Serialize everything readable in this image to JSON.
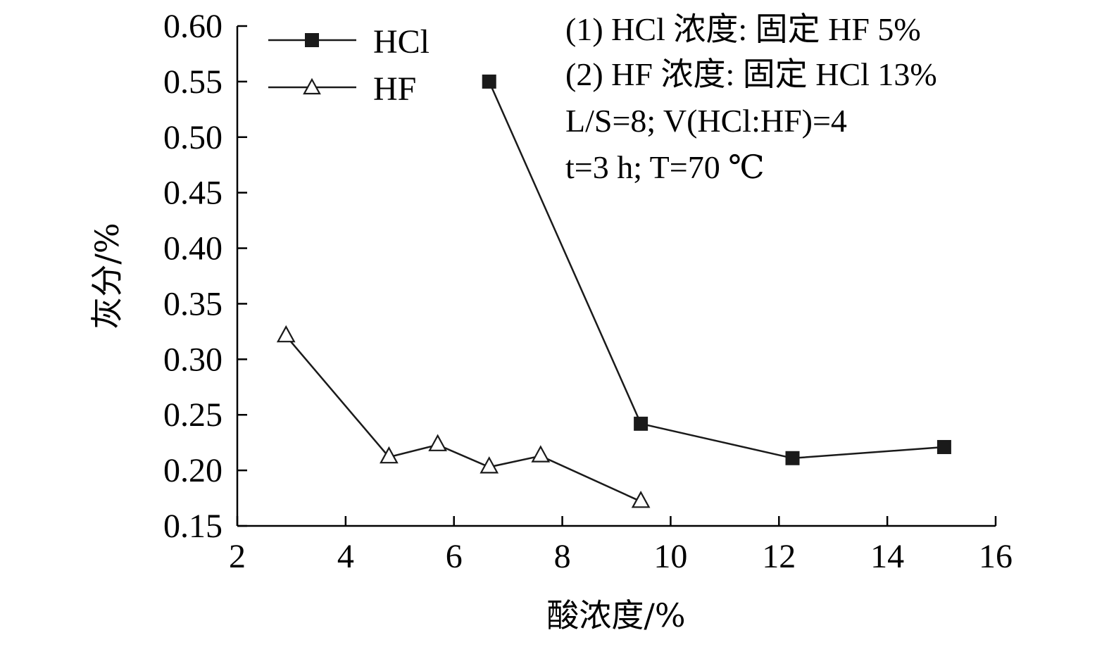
{
  "chart_data": {
    "type": "line",
    "xlabel": "酸浓度/%",
    "ylabel": "灰分/%",
    "xlim": [
      2,
      16
    ],
    "ylim": [
      0.15,
      0.6
    ],
    "x_ticks": [
      "2",
      "4",
      "6",
      "8",
      "10",
      "12",
      "14",
      "16"
    ],
    "y_ticks": [
      "0.15",
      "0.20",
      "0.25",
      "0.30",
      "0.35",
      "0.40",
      "0.45",
      "0.50",
      "0.55",
      "0.60"
    ],
    "grid": false,
    "legend_position": "top-left",
    "series": [
      {
        "name": "HCl",
        "marker": "filled-square",
        "color": "#1a1a1a",
        "points": [
          {
            "x": 6.65,
            "y": 0.55
          },
          {
            "x": 9.45,
            "y": 0.242
          },
          {
            "x": 12.25,
            "y": 0.211
          },
          {
            "x": 15.05,
            "y": 0.221
          }
        ]
      },
      {
        "name": "HF",
        "marker": "open-triangle",
        "color": "#1a1a1a",
        "points": [
          {
            "x": 2.9,
            "y": 0.321
          },
          {
            "x": 4.8,
            "y": 0.212
          },
          {
            "x": 5.7,
            "y": 0.223
          },
          {
            "x": 6.65,
            "y": 0.203
          },
          {
            "x": 7.6,
            "y": 0.213
          },
          {
            "x": 9.45,
            "y": 0.172
          }
        ]
      }
    ],
    "annotations": [
      "(1) HCl 浓度: 固定 HF 5%",
      "(2) HF 浓度: 固定 HCl 13%",
      "L/S=8; V(HCl:HF)=4",
      "t=3 h; T=70 ℃"
    ]
  }
}
